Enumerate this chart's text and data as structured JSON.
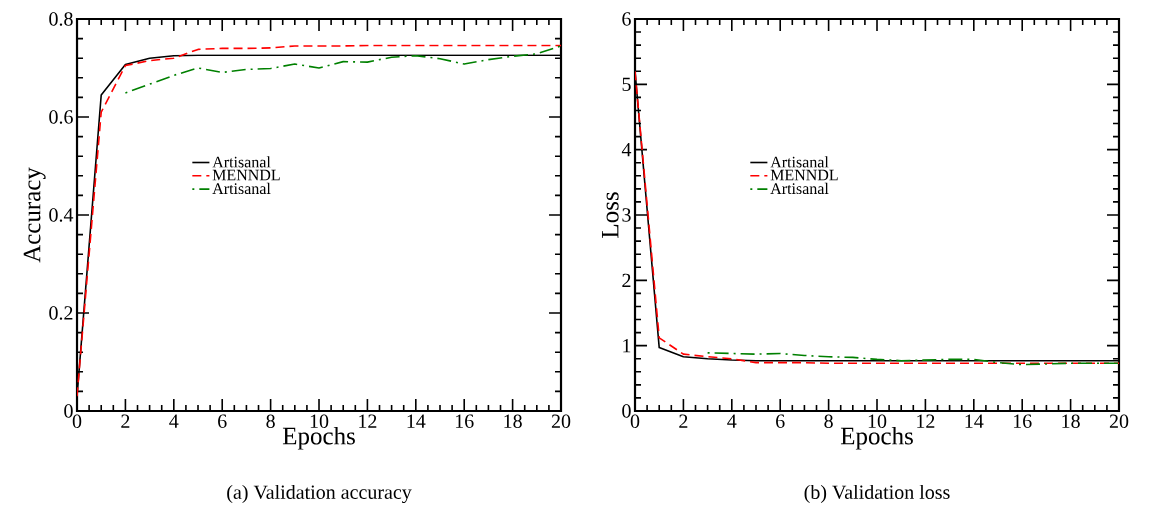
{
  "chart_data": [
    {
      "type": "line",
      "xlabel": "Epochs",
      "ylabel": "Accuracy",
      "annotations": [
        "(a) Validation accuracy"
      ],
      "x": [
        0,
        1,
        2,
        3,
        4,
        5,
        6,
        7,
        8,
        9,
        10,
        11,
        12,
        13,
        14,
        15,
        16,
        17,
        18,
        19,
        20
      ],
      "xlim": [
        0,
        20
      ],
      "ylim": [
        0,
        0.8
      ],
      "xticks": [
        0,
        2,
        4,
        6,
        8,
        10,
        12,
        14,
        16,
        18,
        20
      ],
      "yticks": [
        0,
        0.2,
        0.4,
        0.6,
        0.8
      ],
      "legend": "center",
      "grid": false,
      "series": [
        {
          "name": "Artisanal",
          "color": "#000000",
          "line_style": "solid",
          "values": [
            0.03,
            0.645,
            0.707,
            0.72,
            0.725,
            0.726,
            0.726,
            0.726,
            0.726,
            0.726,
            0.726,
            0.726,
            0.726,
            0.726,
            0.726,
            0.726,
            0.726,
            0.726,
            0.726,
            0.726,
            0.726
          ]
        },
        {
          "name": "MENNDL",
          "color": "#ff0000",
          "line_style": "dashed",
          "values": [
            0.03,
            0.61,
            0.705,
            0.715,
            0.72,
            0.738,
            0.74,
            0.74,
            0.741,
            0.745,
            0.745,
            0.745,
            0.746,
            0.746,
            0.746,
            0.746,
            0.746,
            0.746,
            0.746,
            0.746,
            0.746
          ]
        },
        {
          "name": "Artisanal",
          "color": "#008000",
          "line_style": "dashdot",
          "values": [
            null,
            null,
            0.649,
            0.667,
            0.685,
            0.7,
            0.691,
            0.697,
            0.699,
            0.708,
            0.7,
            0.713,
            0.712,
            0.722,
            0.725,
            0.719,
            0.708,
            0.717,
            0.724,
            0.729,
            0.745
          ]
        }
      ]
    },
    {
      "type": "line",
      "xlabel": "Epochs",
      "ylabel": "Loss",
      "annotations": [
        "(b) Validation loss"
      ],
      "x": [
        0,
        1,
        2,
        3,
        4,
        5,
        6,
        7,
        8,
        9,
        10,
        11,
        12,
        13,
        14,
        15,
        16,
        17,
        18,
        19,
        20
      ],
      "xlim": [
        0,
        20
      ],
      "ylim": [
        0,
        6
      ],
      "xticks": [
        0,
        2,
        4,
        6,
        8,
        10,
        12,
        14,
        16,
        18,
        20
      ],
      "yticks": [
        0,
        1,
        2,
        3,
        4,
        5,
        6
      ],
      "legend": "center",
      "grid": false,
      "series": [
        {
          "name": "Artisanal",
          "color": "#000000",
          "line_style": "solid",
          "values": [
            5.2,
            0.97,
            0.83,
            0.8,
            0.78,
            0.77,
            0.77,
            0.77,
            0.77,
            0.77,
            0.77,
            0.77,
            0.77,
            0.77,
            0.77,
            0.77,
            0.77,
            0.77,
            0.77,
            0.77,
            0.77
          ]
        },
        {
          "name": "MENNDL",
          "color": "#ff0000",
          "line_style": "dashed",
          "values": [
            5.2,
            1.12,
            0.87,
            0.83,
            0.8,
            0.74,
            0.74,
            0.74,
            0.73,
            0.73,
            0.73,
            0.73,
            0.73,
            0.73,
            0.73,
            0.73,
            0.73,
            0.73,
            0.73,
            0.73,
            0.73
          ]
        },
        {
          "name": "Artisanal",
          "color": "#008000",
          "line_style": "dashdot",
          "values": [
            null,
            null,
            null,
            0.89,
            0.88,
            0.87,
            0.88,
            0.85,
            0.83,
            0.82,
            0.79,
            0.77,
            0.78,
            0.79,
            0.79,
            0.74,
            0.71,
            0.72,
            0.73,
            0.73,
            0.73
          ]
        }
      ]
    }
  ]
}
